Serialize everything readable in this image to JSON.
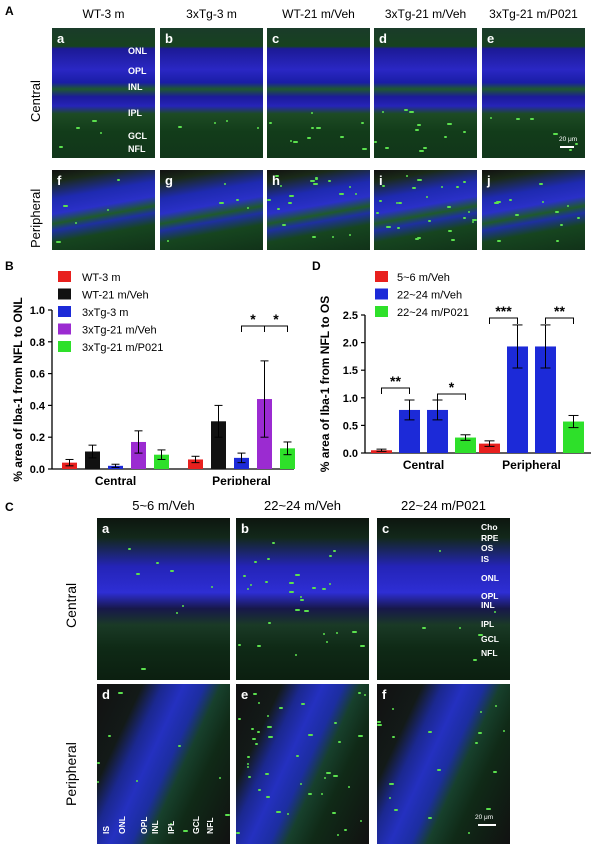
{
  "panel_labels": {
    "A": "A",
    "B": "B",
    "C": "C",
    "D": "D"
  },
  "panelA": {
    "columns": [
      "WT-3 m",
      "3xTg-3 m",
      "WT-21 m/Veh",
      "3xTg-21 m/Veh",
      "3xTg-21 m/P021"
    ],
    "rows": [
      "Central",
      "Peripheral"
    ],
    "tile_letters_top": [
      "a",
      "b",
      "c",
      "d",
      "e"
    ],
    "tile_letters_bottom": [
      "f",
      "g",
      "h",
      "i",
      "j"
    ],
    "layers": [
      "ONL",
      "OPL",
      "INL",
      "IPL",
      "GCL",
      "NFL"
    ],
    "scale": "20 μm"
  },
  "panelC": {
    "columns": [
      "5~6 m/Veh",
      "22~24 m/Veh",
      "22~24 m/P021"
    ],
    "rows": [
      "Central",
      "Peripheral"
    ],
    "tile_letters_top": [
      "a",
      "b",
      "c"
    ],
    "tile_letters_bottom": [
      "d",
      "e",
      "f"
    ],
    "layers_central": [
      "Cho",
      "RPE",
      "OS",
      "IS",
      "ONL",
      "OPL",
      "INL",
      "IPL",
      "GCL",
      "NFL"
    ],
    "layers_peripheral": [
      "IS",
      "ONL",
      "OPL",
      "INL",
      "IPL",
      "GCL",
      "NFL"
    ],
    "scale": "20 μm"
  },
  "chart_data": [
    {
      "type": "bar",
      "panel": "B",
      "ylabel": "% area of Iba-1 from NFL to ONL",
      "ylim": [
        0,
        1.0
      ],
      "yticks": [
        "0.0",
        "0.2",
        "0.4",
        "0.6",
        "0.8",
        "1.0"
      ],
      "groups": [
        "Central",
        "Peripheral"
      ],
      "series": [
        {
          "name": "WT-3 m",
          "color": "#e8201e",
          "values": [
            0.04,
            0.06
          ],
          "errors": [
            0.02,
            0.02
          ]
        },
        {
          "name": "WT-21 m/Veh",
          "color": "#111111",
          "values": [
            0.11,
            0.3
          ],
          "errors": [
            0.04,
            0.1
          ]
        },
        {
          "name": "3xTg-3 m",
          "color": "#1c2ad8",
          "values": [
            0.02,
            0.07
          ],
          "errors": [
            0.01,
            0.03
          ]
        },
        {
          "name": "3xTg-21 m/Veh",
          "color": "#9b2bd1",
          "values": [
            0.17,
            0.44
          ],
          "errors": [
            0.07,
            0.24
          ]
        },
        {
          "name": "3xTg-21 m/P021",
          "color": "#2ee02a",
          "values": [
            0.09,
            0.13
          ],
          "errors": [
            0.03,
            0.04
          ]
        }
      ],
      "annotations": [
        "*",
        "*"
      ]
    },
    {
      "type": "bar",
      "panel": "D",
      "ylabel": "% area of Iba-1 from NFL to OS",
      "ylim": [
        0,
        2.5
      ],
      "yticks": [
        "0.0",
        "0.5",
        "1.0",
        "1.5",
        "2.0",
        "2.5"
      ],
      "groups": [
        "Central",
        "Peripheral"
      ],
      "series": [
        {
          "name": "5~6 m/Veh",
          "color": "#e8201e",
          "values": [
            0.05,
            0.17
          ],
          "errors": [
            0.02,
            0.05
          ]
        },
        {
          "name": "22~24 m/Veh",
          "color": "#1c2ad8",
          "values": [
            0.78,
            1.93
          ],
          "errors": [
            0.18,
            0.39
          ]
        },
        {
          "name": "22~24 m/P021",
          "color": "#2ee02a",
          "values": [
            0.28,
            0.57
          ],
          "errors": [
            0.05,
            0.11
          ]
        }
      ],
      "bars_central": [
        {
          "series": 0,
          "value": 0.05,
          "error": 0.02
        },
        {
          "series": 1,
          "value": 0.78,
          "error": 0.18
        },
        {
          "series": 1,
          "value": 0.78,
          "error": 0.18
        },
        {
          "series": 2,
          "value": 0.28,
          "error": 0.05
        }
      ],
      "bars_peripheral": [
        {
          "series": 0,
          "value": 0.17,
          "error": 0.05
        },
        {
          "series": 1,
          "value": 1.93,
          "error": 0.39
        },
        {
          "series": 1,
          "value": 1.93,
          "error": 0.39
        },
        {
          "series": 2,
          "value": 0.57,
          "error": 0.11
        }
      ],
      "annotations": [
        "**",
        "*",
        "***",
        "**"
      ]
    }
  ]
}
